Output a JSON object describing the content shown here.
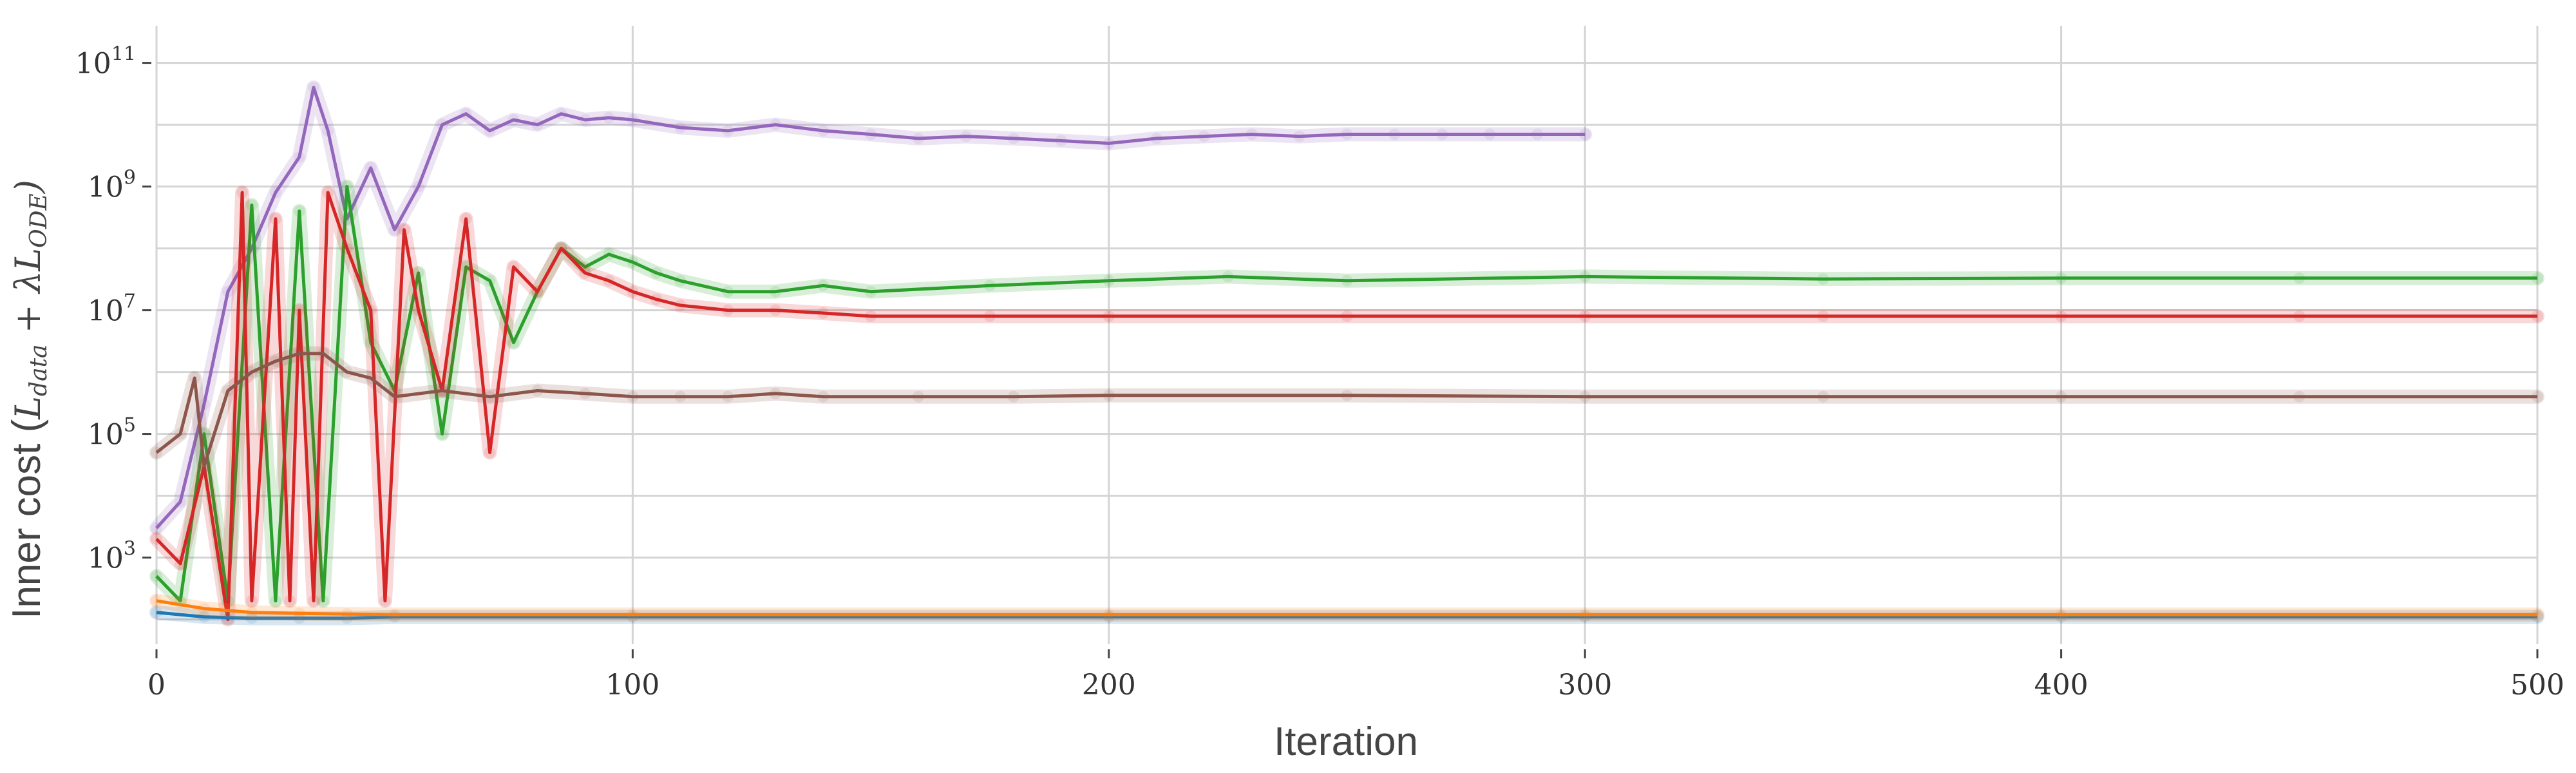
{
  "chart_data": {
    "type": "line",
    "title": "",
    "xlabel": "Iteration",
    "ylabel": {
      "prefix": "Inner cost (",
      "term1": "L",
      "term1_sub": "data",
      "op": " + ",
      "term2": "λL",
      "term2_sub": "ODE",
      "suffix": ")"
    },
    "xlim": [
      0,
      500
    ],
    "ylim_log10": [
      1.6,
      11.6
    ],
    "yscale": "log",
    "grid": true,
    "legend": "none",
    "x_ticks": [
      0,
      100,
      200,
      300,
      400,
      500
    ],
    "x_tick_labels": [
      "0",
      "100",
      "200",
      "300",
      "400",
      "500"
    ],
    "y_ticks_log10": [
      3,
      5,
      7,
      9,
      11
    ],
    "y_tick_base": "10",
    "y_tick_exponents": [
      "3",
      "5",
      "7",
      "9",
      "11"
    ],
    "series": [
      {
        "color": "#9467bd",
        "x": [
          0,
          5,
          10,
          15,
          20,
          25,
          30,
          33,
          36,
          40,
          45,
          50,
          55,
          60,
          65,
          70,
          75,
          80,
          85,
          90,
          95,
          100,
          110,
          120,
          130,
          140,
          150,
          160,
          170,
          180,
          190,
          200,
          210,
          220,
          230,
          240,
          250,
          260,
          270,
          280,
          290,
          300
        ],
        "y": [
          3000,
          8000,
          300000,
          20000000,
          100000000,
          800000000,
          3000000000,
          40000000000,
          8000000000,
          300000000,
          2000000000,
          200000000,
          1000000000,
          10000000000,
          15000000000,
          8000000000,
          12000000000,
          10000000000,
          15000000000,
          12000000000,
          13000000000,
          12000000000,
          9000000000,
          8000000000,
          10000000000,
          8000000000,
          7000000000,
          6000000000,
          6500000000,
          6000000000,
          5500000000,
          5000000000,
          6000000000,
          6500000000,
          7000000000,
          6500000000,
          7000000000,
          7000000000,
          7000000000,
          7000000000,
          7000000000,
          7000000000
        ]
      },
      {
        "color": "#2ca02c",
        "x": [
          0,
          5,
          10,
          15,
          20,
          25,
          30,
          35,
          40,
          45,
          50,
          55,
          60,
          65,
          70,
          75,
          80,
          85,
          90,
          95,
          100,
          105,
          110,
          120,
          130,
          140,
          150,
          175,
          200,
          225,
          250,
          300,
          350,
          400,
          450,
          500
        ],
        "y": [
          500,
          200,
          100000,
          200,
          500000000,
          200,
          400000000,
          200,
          1000000000,
          3000000,
          500000,
          40000000,
          100000,
          50000000,
          30000000,
          3000000,
          20000000,
          100000000,
          50000000,
          80000000,
          60000000,
          40000000,
          30000000,
          20000000,
          20000000,
          25000000,
          20000000,
          25000000,
          30000000,
          35000000,
          30000000,
          35000000,
          32000000,
          33000000,
          33000000,
          33000000
        ]
      },
      {
        "color": "#d62728",
        "x": [
          0,
          5,
          10,
          15,
          18,
          20,
          25,
          28,
          30,
          33,
          36,
          40,
          45,
          48,
          52,
          55,
          60,
          65,
          70,
          75,
          80,
          85,
          90,
          95,
          100,
          105,
          110,
          120,
          130,
          140,
          150,
          175,
          200,
          250,
          300,
          350,
          400,
          450,
          500
        ],
        "y": [
          2000,
          800,
          30000,
          100,
          800000000,
          200,
          300000000,
          200,
          10000000,
          200,
          800000000,
          100000000,
          10000000,
          200,
          200000000,
          10000000,
          500000,
          300000000,
          50000,
          50000000,
          20000000,
          100000000,
          40000000,
          30000000,
          20000000,
          15000000,
          12000000,
          10000000,
          10000000,
          9000000,
          8000000,
          8000000,
          8000000,
          8000000,
          8000000,
          8000000,
          8000000,
          8000000,
          8000000
        ]
      },
      {
        "color": "#8c564b",
        "x": [
          0,
          5,
          8,
          10,
          15,
          20,
          25,
          30,
          35,
          40,
          45,
          50,
          60,
          70,
          80,
          90,
          100,
          110,
          120,
          130,
          140,
          160,
          180,
          200,
          250,
          300,
          350,
          400,
          450,
          500
        ],
        "y": [
          50000,
          100000,
          800000,
          30000,
          500000,
          1000000,
          1500000,
          2000000,
          2000000,
          1000000,
          800000,
          400000,
          500000,
          400000,
          500000,
          450000,
          400000,
          400000,
          400000,
          450000,
          400000,
          400000,
          400000,
          420000,
          420000,
          400000,
          400000,
          400000,
          400000,
          400000
        ]
      },
      {
        "color": "#1f77b4",
        "x": [
          0,
          10,
          20,
          30,
          40,
          50,
          100,
          200,
          300,
          400,
          500
        ],
        "y": [
          130,
          110,
          105,
          105,
          105,
          110,
          110,
          110,
          110,
          110,
          110
        ]
      },
      {
        "color": "#ff7f0e",
        "x": [
          0,
          10,
          20,
          30,
          40,
          50,
          100,
          200,
          300,
          400,
          500
        ],
        "y": [
          200,
          150,
          130,
          125,
          122,
          120,
          120,
          120,
          120,
          120,
          120
        ]
      }
    ]
  }
}
